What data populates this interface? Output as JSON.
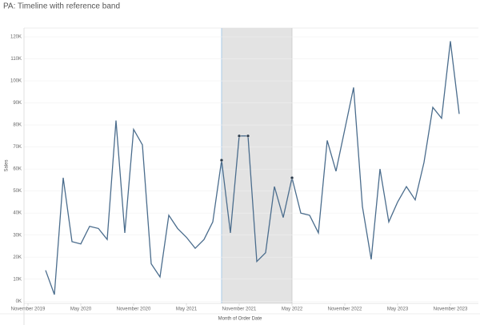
{
  "chart_data": {
    "type": "line",
    "title": "PA: Timeline with reference band",
    "x_label": "Month of Order Date",
    "y_label": "Sales",
    "x": [
      "2020-01",
      "2020-02",
      "2020-03",
      "2020-04",
      "2020-05",
      "2020-06",
      "2020-07",
      "2020-08",
      "2020-09",
      "2020-10",
      "2020-11",
      "2020-12",
      "2021-01",
      "2021-02",
      "2021-03",
      "2021-04",
      "2021-05",
      "2021-06",
      "2021-07",
      "2021-08",
      "2021-09",
      "2021-10",
      "2021-11",
      "2021-12",
      "2022-01",
      "2022-02",
      "2022-03",
      "2022-04",
      "2022-05",
      "2022-06",
      "2022-07",
      "2022-08",
      "2022-09",
      "2022-10",
      "2022-11",
      "2022-12",
      "2023-01",
      "2023-02",
      "2023-03",
      "2023-04",
      "2023-05",
      "2023-06",
      "2023-07",
      "2023-08",
      "2023-09",
      "2023-10",
      "2023-11",
      "2023-12"
    ],
    "series": [
      {
        "name": "Sales",
        "color": "#4b6d8d",
        "values": [
          14,
          3,
          56,
          27,
          26,
          34,
          33,
          28,
          82,
          31,
          78,
          71,
          17,
          11,
          39,
          33,
          29,
          24,
          28,
          36,
          64,
          31,
          75,
          75,
          18,
          22,
          52,
          38,
          56,
          40,
          39,
          31,
          73,
          59,
          78,
          97,
          43,
          19,
          60,
          36,
          45,
          52,
          46,
          63,
          88,
          83,
          118,
          85
        ]
      }
    ],
    "highlight": [
      "2021-09",
      "2021-11",
      "2021-12",
      "2022-05"
    ],
    "band": {
      "from": "2021-09",
      "to": "2022-05",
      "color": "#e3e3e3"
    },
    "xlim": [
      "2019-10",
      "2024-02"
    ],
    "xticks": [
      {
        "value": "2019-11",
        "label": "November 2019"
      },
      {
        "value": "2020-05",
        "label": "May 2020"
      },
      {
        "value": "2020-11",
        "label": "November 2020"
      },
      {
        "value": "2021-05",
        "label": "May 2021"
      },
      {
        "value": "2021-11",
        "label": "November 2021"
      },
      {
        "value": "2022-05",
        "label": "May 2022"
      },
      {
        "value": "2022-11",
        "label": "November 2022"
      },
      {
        "value": "2023-05",
        "label": "May 2023"
      },
      {
        "value": "2023-11",
        "label": "November 2023"
      }
    ],
    "ylim": [
      -1,
      124
    ],
    "yticks": [
      {
        "value": 0,
        "label": "0K"
      },
      {
        "value": 10,
        "label": "10K"
      },
      {
        "value": 20,
        "label": "20K"
      },
      {
        "value": 30,
        "label": "30K"
      },
      {
        "value": 40,
        "label": "40K"
      },
      {
        "value": 50,
        "label": "50K"
      },
      {
        "value": 60,
        "label": "60K"
      },
      {
        "value": 70,
        "label": "70K"
      },
      {
        "value": 80,
        "label": "80K"
      },
      {
        "value": 90,
        "label": "90K"
      },
      {
        "value": 100,
        "label": "100K"
      },
      {
        "value": 110,
        "label": "110K"
      },
      {
        "value": 120,
        "label": "120K"
      }
    ],
    "grid": true
  }
}
